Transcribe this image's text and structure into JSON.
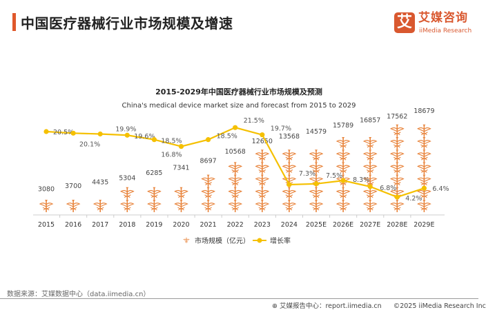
{
  "header": {
    "title": "中国医疗器械行业市场规模及增速"
  },
  "logo": {
    "mark": "艾",
    "name_cn": "艾媒咨询",
    "name_en": "iiMedia Research"
  },
  "footer": {
    "source": "数据来源：艾媒数据中心（data.iimedia.cn）",
    "report_center": "艾媒报告中心：report.iimedia.cn",
    "copyright": "©2025  iiMedia Research  Inc"
  },
  "colors": {
    "bar": "#e8843c",
    "line": "#f5c000",
    "accent": "#d9582f"
  },
  "chart_data": {
    "type": "bar+line",
    "title": "2015-2029年中国医疗器械行业市场规模及预测",
    "subtitle": "China's medical device market size and forecast from 2015 to 2029",
    "categories": [
      "2015",
      "2016",
      "2017",
      "2018",
      "2019",
      "2020",
      "2021",
      "2022",
      "2023",
      "2024",
      "2025E",
      "2026E",
      "2027E",
      "2028E",
      "2029E"
    ],
    "series": [
      {
        "name": "市场规模（亿元）",
        "type": "pictogram-bar",
        "values": [
          3080,
          3700,
          4435,
          5304,
          6285,
          7341,
          8697,
          10568,
          12650,
          13568,
          14579,
          15789,
          16857,
          17562,
          18679
        ],
        "labels": [
          "3080",
          "3700",
          "4435",
          "5304",
          "6285",
          "7341",
          "8697",
          "10568",
          "12650",
          "13568",
          "14579",
          "15789",
          "16857",
          "17562",
          "18679"
        ]
      },
      {
        "name": "增长率",
        "type": "line",
        "values": [
          20.5,
          20.1,
          19.9,
          19.6,
          18.5,
          16.8,
          18.5,
          21.5,
          19.7,
          7.3,
          7.5,
          8.3,
          6.8,
          4.2,
          6.4
        ],
        "labels": [
          "20.5%",
          "20.1%",
          "19.9%",
          "19.6%",
          "18.5%",
          "16.8%",
          "18.5%",
          "21.5%",
          "19.7%",
          "7.3%",
          "7.5%",
          "8.3%",
          "6.8%",
          "4.2%",
          "6.4%"
        ]
      }
    ],
    "legend": "bottom",
    "grid": false
  }
}
